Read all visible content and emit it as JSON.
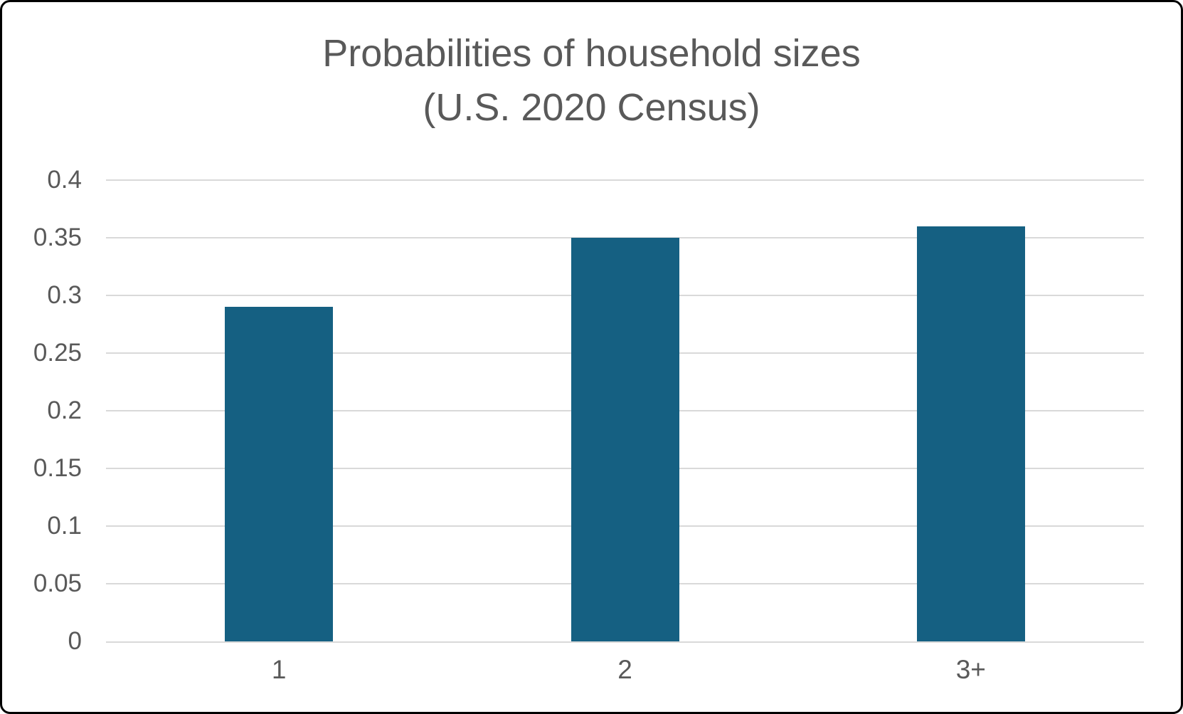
{
  "chart_data": {
    "type": "bar",
    "title": "Probabilities of household sizes",
    "subtitle": "(U.S. 2020 Census)",
    "categories": [
      "1",
      "2",
      "3+"
    ],
    "values": [
      0.29,
      0.35,
      0.36
    ],
    "ylim": [
      0,
      0.4
    ],
    "y_ticks": [
      0,
      0.05,
      0.1,
      0.15,
      0.2,
      0.25,
      0.3,
      0.35,
      0.4
    ],
    "y_tick_labels": [
      "0",
      "0.05",
      "0.1",
      "0.15",
      "0.2",
      "0.25",
      "0.3",
      "0.35",
      "0.4"
    ],
    "grid": true,
    "legend": false,
    "colors": {
      "bar": "#156082",
      "gridline": "#d9d9d9",
      "axis": "#d9d9d9",
      "text": "#595959",
      "background": "#ffffff",
      "frame_border": "#000000"
    }
  }
}
